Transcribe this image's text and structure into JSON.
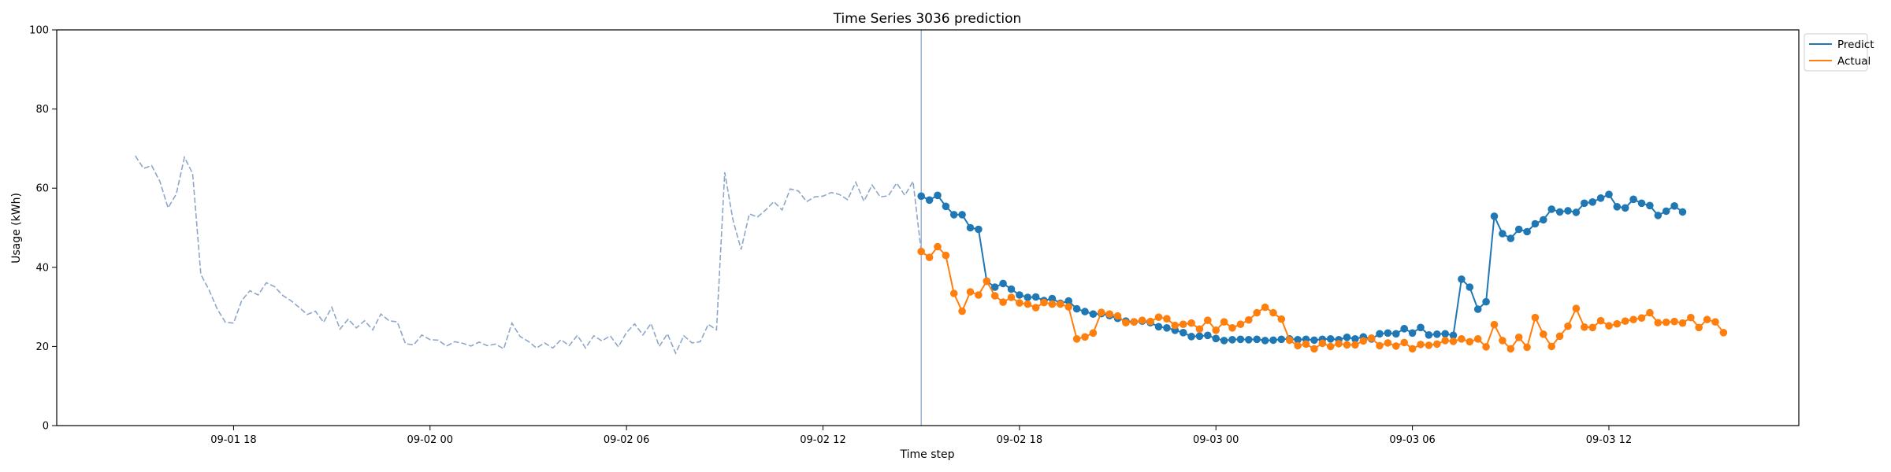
{
  "chart_data": {
    "type": "line",
    "title": "Time Series 3036 prediction",
    "xlabel": "Time step",
    "ylabel": "Usage (kWh)",
    "ylim": [
      0,
      100
    ],
    "yticks": [
      0,
      20,
      40,
      60,
      80,
      100
    ],
    "xlim": [
      "09-01 12:36",
      "09-03 17:48"
    ],
    "xticks": [
      "09-01 18",
      "09-02 00",
      "09-02 06",
      "09-02 12",
      "09-02 18",
      "09-03 00",
      "09-03 06",
      "09-03 12"
    ],
    "grid": false,
    "legend_position": "outside-top-right",
    "forecast_start": "09-02 15:00",
    "history": {
      "start": "09-01 15:00",
      "interval_minutes": 15,
      "style": "dashed",
      "color": "#8ea7c9",
      "values": [
        68.2,
        65.0,
        65.7,
        61.7,
        55.0,
        58.5,
        67.8,
        63.7,
        38.2,
        34.3,
        29.5,
        26.1,
        25.9,
        31.6,
        34.1,
        33.0,
        36.1,
        35.1,
        32.9,
        31.6,
        29.9,
        28.1,
        28.9,
        26.1,
        29.9,
        24.4,
        26.9,
        24.7,
        26.5,
        24.2,
        28.2,
        26.5,
        26.2,
        20.7,
        20.4,
        22.9,
        21.7,
        21.6,
        20.1,
        21.2,
        20.8,
        20.1,
        21.1,
        20.2,
        20.6,
        19.4,
        25.9,
        22.5,
        21.3,
        19.6,
        20.9,
        19.6,
        21.7,
        20.2,
        22.8,
        19.6,
        22.7,
        21.4,
        22.7,
        19.9,
        23.5,
        25.7,
        22.9,
        25.8,
        20.0,
        23.2,
        18.3,
        22.7,
        20.9,
        21.2,
        25.6,
        24.2,
        64.0,
        52.0,
        44.5,
        53.5,
        52.7,
        54.5,
        56.6,
        54.5,
        59.8,
        59.3,
        56.6,
        57.8,
        58.0,
        58.9,
        58.4,
        57.1,
        61.5,
        56.7,
        60.8,
        57.8,
        58.1,
        61.3,
        58.2,
        61.7,
        44.0
      ]
    },
    "series": [
      {
        "name": "Predict",
        "color": "#1f77b4",
        "start": "09-02 15:00",
        "interval_minutes": 15,
        "values": [
          58.0,
          57.0,
          58.2,
          55.4,
          53.3,
          53.3,
          50.0,
          49.6,
          36.5,
          35.0,
          35.9,
          34.5,
          33.0,
          32.4,
          32.5,
          31.6,
          32.1,
          30.9,
          31.5,
          29.5,
          28.8,
          28.2,
          28.3,
          27.8,
          27.1,
          26.4,
          26.2,
          26.4,
          26.0,
          25.0,
          24.7,
          24.1,
          23.5,
          22.5,
          22.6,
          22.8,
          22.0,
          21.5,
          21.7,
          21.8,
          21.7,
          21.8,
          21.5,
          21.6,
          21.8,
          21.9,
          21.7,
          21.8,
          21.6,
          21.8,
          21.9,
          21.7,
          22.3,
          21.9,
          22.4,
          21.9,
          23.2,
          23.4,
          23.2,
          24.5,
          23.4,
          24.8,
          22.9,
          23.1,
          23.2,
          22.8,
          37.0,
          35.0,
          29.4,
          31.3,
          52.9,
          48.5,
          47.3,
          49.6,
          49.0,
          51.0,
          52.0,
          54.7,
          54.0,
          54.3,
          53.9,
          56.2,
          56.5,
          57.5,
          58.4,
          55.3,
          55.0,
          57.2,
          56.2,
          55.6,
          53.1,
          54.2,
          55.5,
          54.0
        ]
      },
      {
        "name": "Actual",
        "color": "#ff7f0e",
        "start": "09-02 15:00",
        "interval_minutes": 15,
        "values": [
          44.0,
          42.5,
          45.2,
          43.0,
          33.4,
          28.9,
          33.8,
          33.0,
          36.5,
          32.8,
          31.2,
          32.4,
          31.0,
          30.7,
          29.8,
          31.1,
          30.7,
          30.7,
          30.0,
          21.9,
          22.4,
          23.4,
          28.6,
          28.2,
          27.7,
          26.0,
          26.2,
          26.6,
          26.3,
          27.4,
          27.0,
          25.3,
          25.6,
          25.9,
          24.4,
          26.6,
          24.1,
          26.2,
          24.7,
          25.6,
          26.7,
          28.5,
          29.9,
          28.5,
          26.9,
          21.6,
          20.2,
          20.6,
          19.4,
          20.8,
          20.0,
          20.7,
          20.4,
          20.4,
          21.4,
          22.1,
          20.2,
          20.9,
          20.1,
          21.0,
          19.4,
          20.5,
          20.3,
          20.6,
          21.5,
          21.3,
          21.9,
          21.2,
          21.9,
          19.9,
          25.5,
          21.5,
          19.4,
          22.3,
          19.8,
          27.3,
          23.1,
          20.0,
          22.6,
          25.1,
          29.6,
          24.9,
          24.8,
          26.5,
          25.2,
          25.7,
          26.4,
          26.8,
          27.2,
          28.5,
          26.0,
          26.1,
          26.3,
          25.9,
          27.3,
          24.8,
          26.8,
          26.2,
          23.5
        ]
      }
    ]
  }
}
